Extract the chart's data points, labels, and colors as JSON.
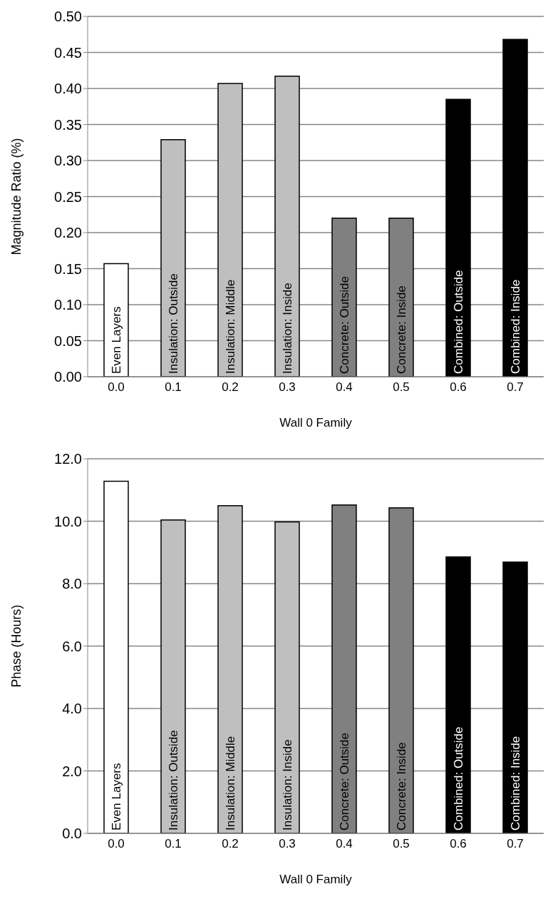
{
  "chart_data": [
    {
      "type": "bar",
      "xlabel": "Wall 0 Family",
      "ylabel": "Magnitude Ratio (%)",
      "categories": [
        "0.0",
        "0.1",
        "0.2",
        "0.3",
        "0.4",
        "0.5",
        "0.6",
        "0.7"
      ],
      "values": [
        0.157,
        0.329,
        0.407,
        0.417,
        0.22,
        0.22,
        0.385,
        0.468
      ],
      "colors": [
        "#ffffff",
        "#bfbfbf",
        "#bfbfbf",
        "#bfbfbf",
        "#808080",
        "#808080",
        "#000000",
        "#000000"
      ],
      "ylim": [
        0,
        0.5
      ],
      "yticks": [
        {
          "value": 0,
          "label": "0.00"
        },
        {
          "value": 0.05,
          "label": "0.05"
        },
        {
          "value": 0.1,
          "label": "0.10"
        },
        {
          "value": 0.15,
          "label": "0.15"
        },
        {
          "value": 0.2,
          "label": "0.20"
        },
        {
          "value": 0.25,
          "label": "0.25"
        },
        {
          "value": 0.3,
          "label": "0.30"
        },
        {
          "value": 0.35,
          "label": "0.35"
        },
        {
          "value": 0.4,
          "label": "0.40"
        },
        {
          "value": 0.45,
          "label": "0.45"
        },
        {
          "value": 0.5,
          "label": "0.50"
        }
      ],
      "grid": "y",
      "annotations": [
        {
          "text": "Even Layers",
          "x": "0.0",
          "y": 0
        },
        {
          "text": "Insulation: Outside",
          "x": "0.1",
          "y": 0
        },
        {
          "text": "Insulation: Middle",
          "x": "0.2",
          "y": 0
        },
        {
          "text": "Insulation: Inside",
          "x": "0.3",
          "y": 0
        },
        {
          "text": "Concrete: Outside",
          "x": "0.4",
          "y": 0
        },
        {
          "text": "Concrete: Inside",
          "x": "0.5",
          "y": 0
        },
        {
          "text": "Combined: Outside",
          "x": "0.6",
          "y": 0
        },
        {
          "text": "Combined: Inside",
          "x": "0.7",
          "y": 0
        }
      ]
    },
    {
      "type": "bar",
      "xlabel": "Wall 0 Family",
      "ylabel": "Phase (Hours)",
      "categories": [
        "0.0",
        "0.1",
        "0.2",
        "0.3",
        "0.4",
        "0.5",
        "0.6",
        "0.7"
      ],
      "values": [
        11.28,
        10.04,
        10.5,
        9.98,
        10.52,
        10.43,
        8.86,
        8.69
      ],
      "colors": [
        "#ffffff",
        "#bfbfbf",
        "#bfbfbf",
        "#bfbfbf",
        "#808080",
        "#808080",
        "#000000",
        "#000000"
      ],
      "ylim": [
        0,
        12
      ],
      "yticks": [
        {
          "value": 0,
          "label": "0.0"
        },
        {
          "value": 2,
          "label": "2.0"
        },
        {
          "value": 4,
          "label": "4.0"
        },
        {
          "value": 6,
          "label": "6.0"
        },
        {
          "value": 8,
          "label": "8.0"
        },
        {
          "value": 10,
          "label": "10.0"
        },
        {
          "value": 12,
          "label": "12.0"
        }
      ],
      "grid": "y",
      "annotations": [
        {
          "text": "Even Layers",
          "x": "0.0",
          "y": 0
        },
        {
          "text": "Insulation: Outside",
          "x": "0.1",
          "y": 0
        },
        {
          "text": "Insulation: Middle",
          "x": "0.2",
          "y": 0
        },
        {
          "text": "Insulation: Inside",
          "x": "0.3",
          "y": 0
        },
        {
          "text": "Concrete: Outside",
          "x": "0.4",
          "y": 0
        },
        {
          "text": "Concrete: Inside",
          "x": "0.5",
          "y": 0
        },
        {
          "text": "Combined: Outside",
          "x": "0.6",
          "y": 0
        },
        {
          "text": "Combined: Inside",
          "x": "0.7",
          "y": 0
        }
      ]
    }
  ]
}
